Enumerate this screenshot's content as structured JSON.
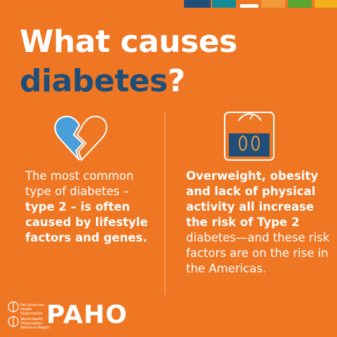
{
  "title": {
    "line1": "What causes",
    "highlight": "diabetes",
    "punctuation": "?"
  },
  "left_column": {
    "regular": "The most common type of diabetes –",
    "bold": "type 2 – is often caused by lifestyle factors and genes."
  },
  "right_column": {
    "bold": "Overweight, obesity and lack of physical activity all increase the risk of Type 2",
    "regular": "diabetes—and these risk factors are on the rise in the Americas."
  },
  "footer": {
    "organization_1": "Pan American Health Organization",
    "organization_2": "World Health Organization Americas Region",
    "logo": "PAHO"
  }
}
